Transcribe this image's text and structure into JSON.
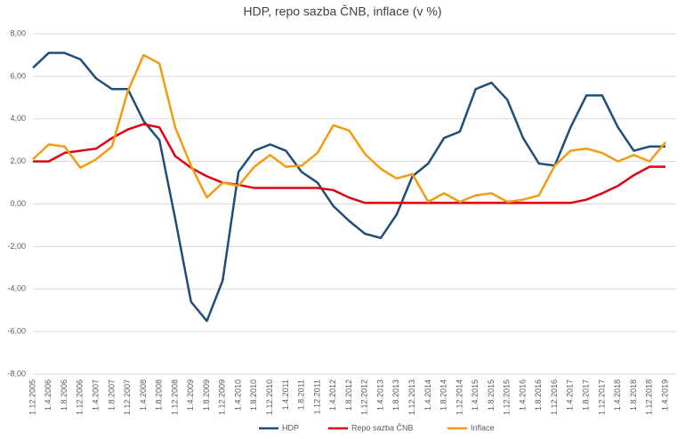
{
  "chart_data": {
    "type": "line",
    "title": "HDP, repo sazba ČNB, inflace (v %)",
    "categories": [
      "1.12.2005",
      "1.4.2006",
      "1.8.2006",
      "1.12.2006",
      "1.4.2007",
      "1.8.2007",
      "1.12.2007",
      "1.4.2008",
      "1.8.2008",
      "1.12.2008",
      "1.4.2009",
      "1.8.2009",
      "1.12.2009",
      "1.4.2010",
      "1.8.2010",
      "1.12.2010",
      "1.4.2011",
      "1.8.2011",
      "1.12.2011",
      "1.4.2012",
      "1.8.2012",
      "1.12.2012",
      "1.4.2013",
      "1.8.2013",
      "1.12.2013",
      "1.4.2014",
      "1.8.2014",
      "1.12.2014",
      "1.4.2015",
      "1.8.2015",
      "1.12.2015",
      "1.4.2016",
      "1.8.2016",
      "1.12.2016",
      "1.4.2017",
      "1.8.2017",
      "1.12.2017",
      "1.4.2018",
      "1.8.2018",
      "1.12.2018",
      "1.4.2019"
    ],
    "series": [
      {
        "name": "HDP",
        "color": "#1f4e79",
        "values": [
          6.4,
          7.1,
          7.1,
          6.8,
          5.9,
          5.4,
          5.4,
          3.9,
          3.0,
          -0.7,
          -4.6,
          -5.5,
          -3.6,
          1.5,
          2.5,
          2.8,
          2.5,
          1.5,
          1.0,
          -0.1,
          -0.8,
          -1.4,
          -1.6,
          -0.5,
          1.3,
          1.9,
          3.1,
          3.4,
          5.4,
          5.7,
          4.9,
          3.1,
          1.9,
          1.8,
          3.6,
          5.1,
          5.1,
          3.6,
          2.5,
          2.7,
          2.7
        ]
      },
      {
        "name": "Repo sazba ČNB",
        "color": "#e00012",
        "values": [
          2.0,
          2.0,
          2.4,
          2.5,
          2.6,
          3.1,
          3.5,
          3.75,
          3.6,
          2.25,
          1.7,
          1.3,
          1.0,
          0.9,
          0.75,
          0.75,
          0.75,
          0.75,
          0.75,
          0.65,
          0.3,
          0.05,
          0.05,
          0.05,
          0.05,
          0.05,
          0.05,
          0.05,
          0.05,
          0.05,
          0.05,
          0.05,
          0.05,
          0.05,
          0.05,
          0.2,
          0.5,
          0.85,
          1.35,
          1.75,
          1.75
        ]
      },
      {
        "name": "Inflace",
        "color": "#f39c12",
        "values": [
          2.1,
          2.8,
          2.7,
          1.7,
          2.1,
          2.7,
          5.3,
          7.0,
          6.6,
          3.6,
          1.8,
          0.3,
          1.0,
          0.85,
          1.75,
          2.3,
          1.75,
          1.8,
          2.4,
          3.7,
          3.45,
          2.35,
          1.65,
          1.2,
          1.4,
          0.1,
          0.5,
          0.1,
          0.4,
          0.5,
          0.1,
          0.2,
          0.4,
          1.8,
          2.5,
          2.6,
          2.4,
          2.0,
          2.3,
          2.0,
          2.9
        ]
      }
    ],
    "ylim": [
      -8,
      8
    ],
    "yticks": [
      {
        "value": -8,
        "label": "-8,00"
      },
      {
        "value": -6,
        "label": "-6,00"
      },
      {
        "value": -4,
        "label": "-4,00"
      },
      {
        "value": -2,
        "label": "-2,00"
      },
      {
        "value": 0,
        "label": "0,00"
      },
      {
        "value": 2,
        "label": "2,00"
      },
      {
        "value": 4,
        "label": "4,00"
      },
      {
        "value": 6,
        "label": "6,00"
      },
      {
        "value": 8,
        "label": "8,00"
      }
    ],
    "grid": true,
    "legend": "bottom"
  }
}
